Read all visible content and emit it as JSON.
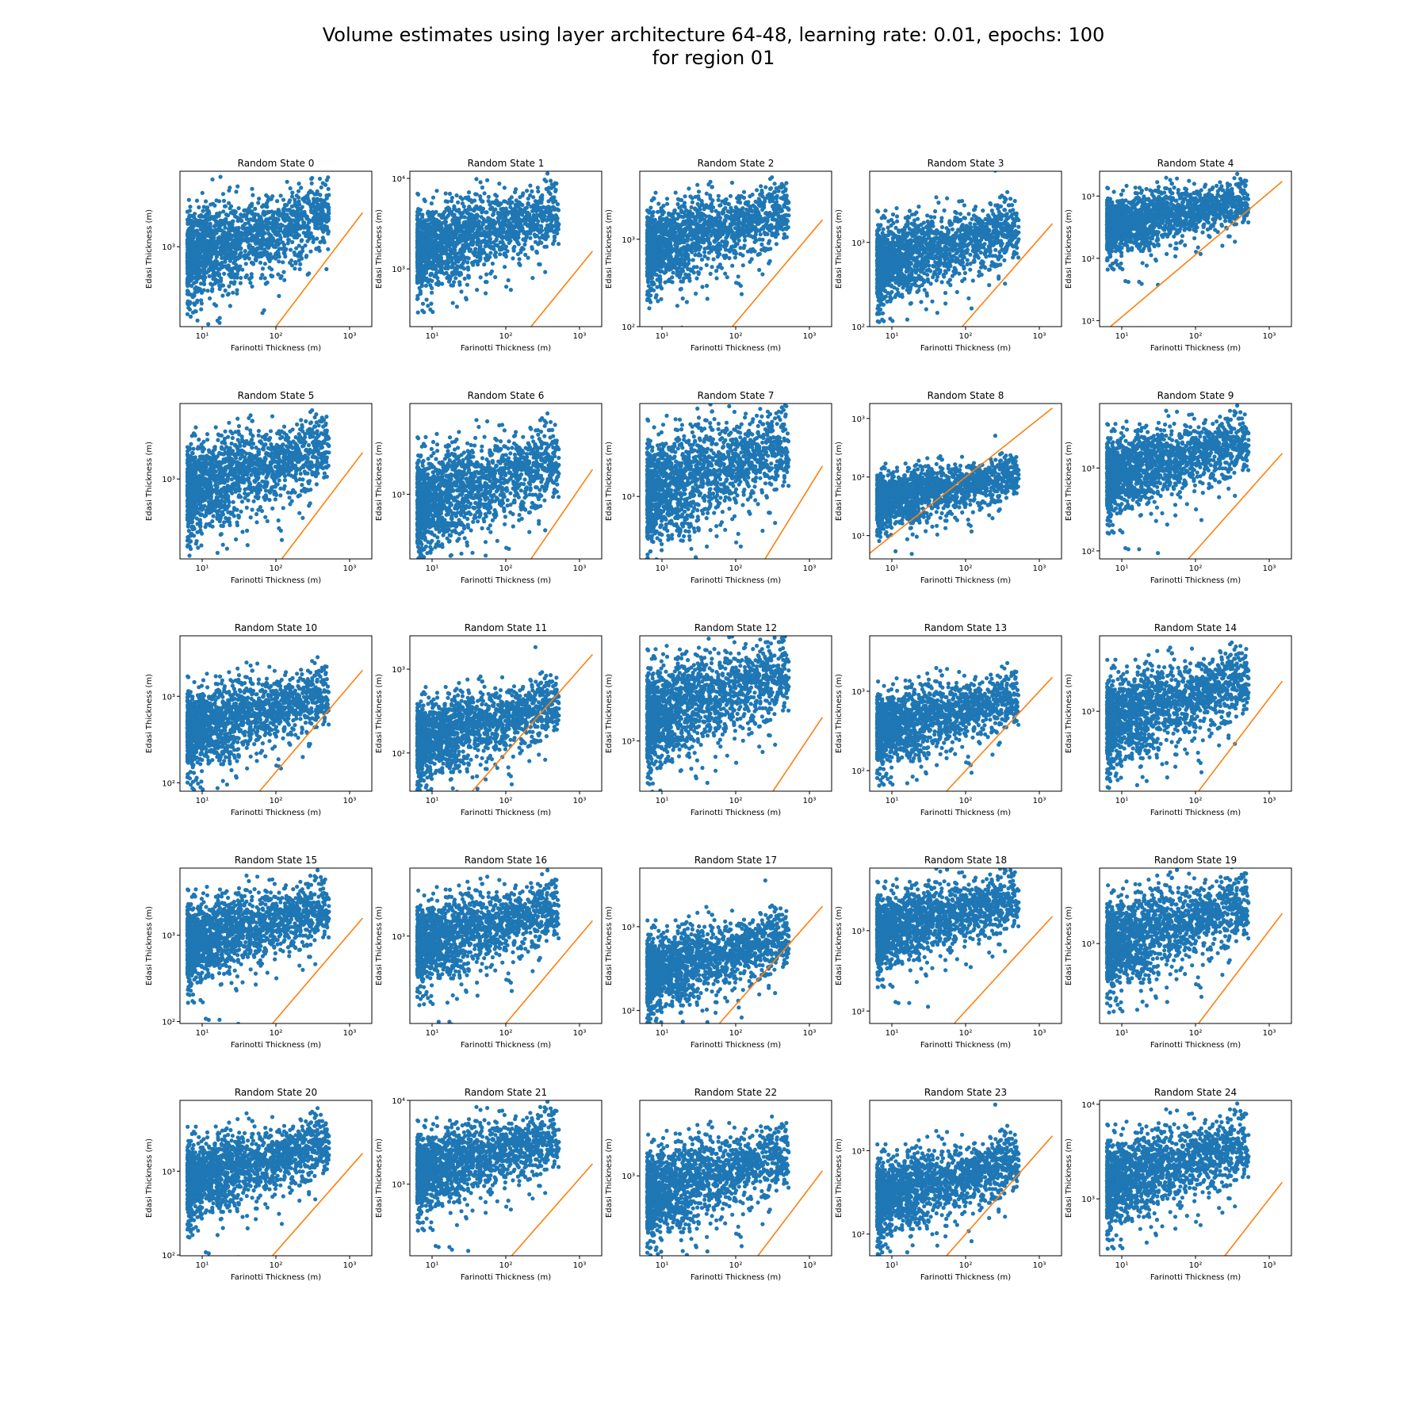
{
  "figure": {
    "suptitle_line1": "Volume estimates using layer architecture 64-48, learning rate: 0.01, epochs: 100",
    "suptitle_line2": "for region 01"
  },
  "colors": {
    "scatter": "#1f77b4",
    "line": "#ff7f0e",
    "axes": "#000000",
    "background": "#ffffff"
  },
  "chart_data": {
    "type": "scatter",
    "layout": "5x5 grid of subplots",
    "xlabel": "Farinotti Thickness (m)",
    "ylabel": "Edasi Thickness (m)",
    "xscale": "log",
    "yscale": "log",
    "xlim": [
      5,
      2000
    ],
    "xticks": [
      10,
      100,
      1000
    ],
    "grid": false,
    "legend": "none",
    "series_names": [
      "scatter of estimates",
      "1:1 reference line"
    ],
    "subplots": [
      {
        "title": "Random State 0",
        "ylim": [
          150,
          6000
        ],
        "yticks": [
          1000
        ],
        "cloud_center_y": 1000,
        "line_x_start": 100
      },
      {
        "title": "Random State 1",
        "ylim": [
          230,
          12000
        ],
        "yticks": [
          1000,
          10000
        ],
        "cloud_center_y": 2000,
        "line_x_start": 220
      },
      {
        "title": "Random State 2",
        "ylim": [
          100,
          6000
        ],
        "yticks": [
          100,
          1000
        ],
        "cloud_center_y": 1000,
        "line_x_start": 90
      },
      {
        "title": "Random State 3",
        "ylim": [
          100,
          7000
        ],
        "yticks": [
          100,
          1000
        ],
        "cloud_center_y": 700,
        "line_x_start": 90
      },
      {
        "title": "Random State 4",
        "ylim": [
          8,
          2500
        ],
        "yticks": [
          10,
          100,
          1000
        ],
        "cloud_center_y": 400,
        "line_x_start": 7
      },
      {
        "title": "Random State 5",
        "ylim": [
          150,
          6000
        ],
        "yticks": [
          1000
        ],
        "cloud_center_y": 1000,
        "line_x_start": 120
      },
      {
        "title": "Random State 6",
        "ylim": [
          250,
          7000
        ],
        "yticks": [
          1000
        ],
        "cloud_center_y": 1000,
        "line_x_start": 220
      },
      {
        "title": "Random State 7",
        "ylim": [
          300,
          6000
        ],
        "yticks": [
          1000
        ],
        "cloud_center_y": 1300,
        "line_x_start": 250
      },
      {
        "title": "Random State 8",
        "ylim": [
          4,
          1800
        ],
        "yticks": [
          10,
          100,
          1000
        ],
        "cloud_center_y": 50,
        "line_x_start": 4
      },
      {
        "title": "Random State 9",
        "ylim": [
          80,
          6000
        ],
        "yticks": [
          100,
          1000
        ],
        "cloud_center_y": 1000,
        "line_x_start": 80
      },
      {
        "title": "Random State 10",
        "ylim": [
          80,
          5000
        ],
        "yticks": [
          100,
          1000
        ],
        "cloud_center_y": 500,
        "line_x_start": 60
      },
      {
        "title": "Random State 11",
        "ylim": [
          35,
          2500
        ],
        "yticks": [
          100,
          1000
        ],
        "cloud_center_y": 180,
        "line_x_start": 35
      },
      {
        "title": "Random State 12",
        "ylim": [
          350,
          9000
        ],
        "yticks": [
          1000
        ],
        "cloud_center_y": 2000,
        "line_x_start": 320
      },
      {
        "title": "Random State 13",
        "ylim": [
          55,
          5000
        ],
        "yticks": [
          100,
          1000
        ],
        "cloud_center_y": 400,
        "line_x_start": 55
      },
      {
        "title": "Random State 14",
        "ylim": [
          150,
          6000
        ],
        "yticks": [
          1000
        ],
        "cloud_center_y": 1000,
        "line_x_start": 110
      },
      {
        "title": "Random State 15",
        "ylim": [
          95,
          6000
        ],
        "yticks": [
          100,
          1000
        ],
        "cloud_center_y": 1000,
        "line_x_start": 90
      },
      {
        "title": "Random State 16",
        "ylim": [
          100,
          6000
        ],
        "yticks": [
          1000
        ],
        "cloud_center_y": 1000,
        "line_x_start": 100
      },
      {
        "title": "Random State 17",
        "ylim": [
          70,
          5000
        ],
        "yticks": [
          100,
          1000
        ],
        "cloud_center_y": 350,
        "line_x_start": 60
      },
      {
        "title": "Random State 18",
        "ylim": [
          70,
          6000
        ],
        "yticks": [
          100,
          1000
        ],
        "cloud_center_y": 1200,
        "line_x_start": 70
      },
      {
        "title": "Random State 19",
        "ylim": [
          150,
          6000
        ],
        "yticks": [
          1000
        ],
        "cloud_center_y": 1200,
        "line_x_start": 110
      },
      {
        "title": "Random State 20",
        "ylim": [
          98,
          7000
        ],
        "yticks": [
          100,
          1000
        ],
        "cloud_center_y": 1000,
        "line_x_start": 90
      },
      {
        "title": "Random State 21",
        "ylim": [
          140,
          10000
        ],
        "yticks": [
          1000,
          10000
        ],
        "cloud_center_y": 1700,
        "line_x_start": 120
      },
      {
        "title": "Random State 22",
        "ylim": [
          150,
          6000
        ],
        "yticks": [
          1000
        ],
        "cloud_center_y": 800,
        "line_x_start": 200
      },
      {
        "title": "Random State 23",
        "ylim": [
          55,
          4000
        ],
        "yticks": [
          100,
          1000
        ],
        "cloud_center_y": 350,
        "line_x_start": 55
      },
      {
        "title": "Random State 24",
        "ylim": [
          250,
          11000
        ],
        "yticks": [
          1000,
          10000
        ],
        "cloud_center_y": 1800,
        "line_x_start": 250
      }
    ]
  }
}
